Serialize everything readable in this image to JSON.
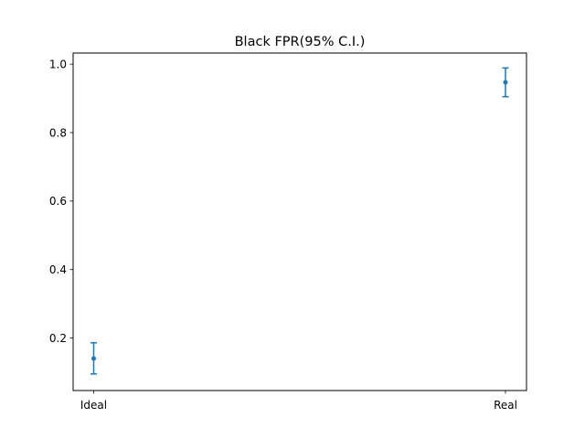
{
  "chart_data": {
    "type": "scatter",
    "title": "Black FPR(95% C.I.)",
    "xlabel": "",
    "ylabel": "",
    "categories": [
      "Ideal",
      "Real"
    ],
    "series": [
      {
        "points": [
          {
            "x": "Ideal",
            "y": 0.14,
            "ci_low": 0.095,
            "ci_high": 0.186
          },
          {
            "x": "Real",
            "y": 0.947,
            "ci_low": 0.905,
            "ci_high": 0.989
          }
        ],
        "color": "#1f77b4"
      }
    ],
    "ylim": [
      0.0465,
      1.0325
    ],
    "yticks": [
      0.2,
      0.4,
      0.6,
      0.8,
      1.0
    ],
    "ytick_labels": [
      "0.2",
      "0.4",
      "0.6",
      "0.8",
      "1.0"
    ],
    "grid": false,
    "legend": "none"
  }
}
